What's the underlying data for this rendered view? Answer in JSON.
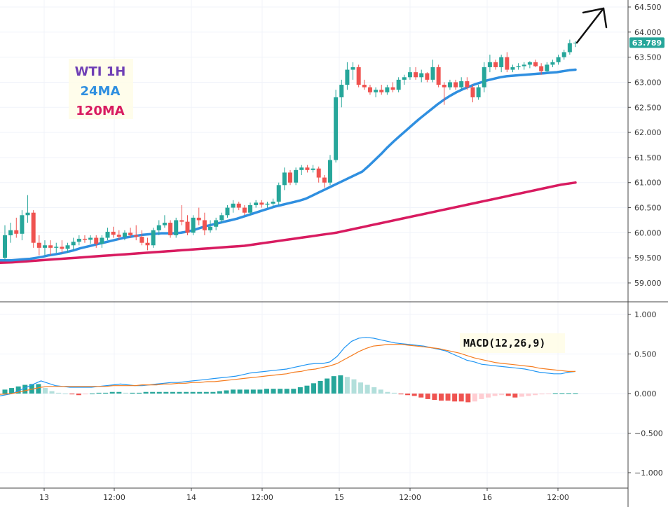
{
  "legend": {
    "line1": "WTI 1H",
    "line2": "24MA",
    "line3": "120MA"
  },
  "colors": {
    "up": "#26a69a",
    "down": "#ef5350",
    "ma24": "#2f8fe0",
    "ma120": "#d81b60",
    "legend1": "#6f3fb5",
    "macd": "#2196f3",
    "signal": "#f57c1f",
    "hist_up_strong": "#26a69a",
    "hist_up_weak": "#b2dfdb",
    "hist_down_strong": "#ef5350",
    "hist_down_weak": "#ffcdd2",
    "price_tag": "#26a69a"
  },
  "macd_label": "MACD(12,26,9)",
  "last_price_label": "63.789",
  "chart_data": [
    {
      "type": "candlestick",
      "title": "WTI 1H",
      "y_ticks": [
        "64.500",
        "64.000",
        "63.500",
        "63.000",
        "62.500",
        "62.000",
        "61.500",
        "61.000",
        "60.500",
        "60.000",
        "59.500",
        "59.000"
      ],
      "y_tick_values": [
        64.5,
        64.0,
        63.5,
        63.0,
        62.5,
        62.0,
        61.5,
        61.0,
        60.5,
        60.0,
        59.5,
        59.0
      ],
      "ylim": [
        58.55,
        64.65
      ],
      "x_ticks": [
        "13",
        "12:00",
        "14",
        "12:00",
        "15",
        "12:00",
        "16",
        "12:00"
      ],
      "last_price": 63.789,
      "candles": [
        {
          "o": 59.5,
          "h": 60.15,
          "l": 59.45,
          "c": 59.95
        },
        {
          "o": 59.95,
          "h": 60.2,
          "l": 59.8,
          "c": 60.05
        },
        {
          "o": 60.05,
          "h": 60.3,
          "l": 59.9,
          "c": 59.98
        },
        {
          "o": 59.98,
          "h": 60.45,
          "l": 59.85,
          "c": 60.35
        },
        {
          "o": 60.35,
          "h": 60.75,
          "l": 60.2,
          "c": 60.4
        },
        {
          "o": 60.4,
          "h": 60.45,
          "l": 59.7,
          "c": 59.8
        },
        {
          "o": 59.8,
          "h": 59.95,
          "l": 59.55,
          "c": 59.7
        },
        {
          "o": 59.7,
          "h": 59.85,
          "l": 59.55,
          "c": 59.75
        },
        {
          "o": 59.75,
          "h": 59.85,
          "l": 59.55,
          "c": 59.7
        },
        {
          "o": 59.7,
          "h": 59.8,
          "l": 59.6,
          "c": 59.72
        },
        {
          "o": 59.72,
          "h": 59.85,
          "l": 59.6,
          "c": 59.68
        },
        {
          "o": 59.68,
          "h": 59.8,
          "l": 59.6,
          "c": 59.75
        },
        {
          "o": 59.75,
          "h": 59.9,
          "l": 59.65,
          "c": 59.82
        },
        {
          "o": 59.82,
          "h": 59.95,
          "l": 59.75,
          "c": 59.88
        },
        {
          "o": 59.88,
          "h": 59.95,
          "l": 59.8,
          "c": 59.86
        },
        {
          "o": 59.86,
          "h": 59.95,
          "l": 59.78,
          "c": 59.9
        },
        {
          "o": 59.9,
          "h": 59.95,
          "l": 59.7,
          "c": 59.78
        },
        {
          "o": 59.78,
          "h": 59.95,
          "l": 59.7,
          "c": 59.9
        },
        {
          "o": 59.9,
          "h": 60.1,
          "l": 59.85,
          "c": 60.02
        },
        {
          "o": 60.02,
          "h": 60.12,
          "l": 59.9,
          "c": 59.96
        },
        {
          "o": 59.96,
          "h": 60.05,
          "l": 59.85,
          "c": 59.92
        },
        {
          "o": 59.92,
          "h": 60.05,
          "l": 59.85,
          "c": 60.0
        },
        {
          "o": 60.0,
          "h": 60.1,
          "l": 59.9,
          "c": 59.95
        },
        {
          "o": 59.95,
          "h": 60.15,
          "l": 59.85,
          "c": 59.92
        },
        {
          "o": 59.92,
          "h": 60.05,
          "l": 59.75,
          "c": 59.8
        },
        {
          "o": 59.8,
          "h": 59.9,
          "l": 59.65,
          "c": 59.75
        },
        {
          "o": 59.75,
          "h": 60.1,
          "l": 59.7,
          "c": 60.05
        },
        {
          "o": 60.05,
          "h": 60.25,
          "l": 59.95,
          "c": 60.15
        },
        {
          "o": 60.15,
          "h": 60.35,
          "l": 60.1,
          "c": 60.2
        },
        {
          "o": 60.2,
          "h": 60.25,
          "l": 59.9,
          "c": 59.95
        },
        {
          "o": 59.95,
          "h": 60.3,
          "l": 59.9,
          "c": 60.25
        },
        {
          "o": 60.25,
          "h": 60.55,
          "l": 60.15,
          "c": 60.22
        },
        {
          "o": 60.22,
          "h": 60.35,
          "l": 59.95,
          "c": 60.0
        },
        {
          "o": 60.0,
          "h": 60.35,
          "l": 59.95,
          "c": 60.3
        },
        {
          "o": 60.3,
          "h": 60.5,
          "l": 60.15,
          "c": 60.25
        },
        {
          "o": 60.25,
          "h": 60.4,
          "l": 59.95,
          "c": 60.05
        },
        {
          "o": 60.05,
          "h": 60.25,
          "l": 60.0,
          "c": 60.12
        },
        {
          "o": 60.12,
          "h": 60.3,
          "l": 60.05,
          "c": 60.25
        },
        {
          "o": 60.25,
          "h": 60.4,
          "l": 60.2,
          "c": 60.35
        },
        {
          "o": 60.35,
          "h": 60.55,
          "l": 60.3,
          "c": 60.5
        },
        {
          "o": 60.5,
          "h": 60.65,
          "l": 60.4,
          "c": 60.58
        },
        {
          "o": 60.58,
          "h": 60.62,
          "l": 60.45,
          "c": 60.5
        },
        {
          "o": 60.5,
          "h": 60.55,
          "l": 60.35,
          "c": 60.4
        },
        {
          "o": 60.4,
          "h": 60.6,
          "l": 60.35,
          "c": 60.55
        },
        {
          "o": 60.55,
          "h": 60.65,
          "l": 60.5,
          "c": 60.6
        },
        {
          "o": 60.6,
          "h": 60.65,
          "l": 60.5,
          "c": 60.56
        },
        {
          "o": 60.56,
          "h": 60.62,
          "l": 60.5,
          "c": 60.58
        },
        {
          "o": 60.58,
          "h": 60.68,
          "l": 60.52,
          "c": 60.62
        },
        {
          "o": 60.62,
          "h": 61.0,
          "l": 60.55,
          "c": 60.95
        },
        {
          "o": 60.95,
          "h": 61.3,
          "l": 60.85,
          "c": 61.2
        },
        {
          "o": 61.2,
          "h": 61.25,
          "l": 60.95,
          "c": 61.0
        },
        {
          "o": 61.0,
          "h": 61.3,
          "l": 60.95,
          "c": 61.25
        },
        {
          "o": 61.25,
          "h": 61.35,
          "l": 61.15,
          "c": 61.3
        },
        {
          "o": 61.3,
          "h": 61.35,
          "l": 61.2,
          "c": 61.25
        },
        {
          "o": 61.25,
          "h": 61.35,
          "l": 61.2,
          "c": 61.28
        },
        {
          "o": 61.28,
          "h": 61.32,
          "l": 61.0,
          "c": 61.1
        },
        {
          "o": 61.1,
          "h": 61.15,
          "l": 60.9,
          "c": 61.0
        },
        {
          "o": 61.0,
          "h": 61.55,
          "l": 60.95,
          "c": 61.45
        },
        {
          "o": 61.45,
          "h": 62.85,
          "l": 61.4,
          "c": 62.7
        },
        {
          "o": 62.7,
          "h": 63.05,
          "l": 62.5,
          "c": 62.95
        },
        {
          "o": 62.95,
          "h": 63.4,
          "l": 62.85,
          "c": 63.25
        },
        {
          "o": 63.25,
          "h": 63.4,
          "l": 63.05,
          "c": 63.3
        },
        {
          "o": 63.3,
          "h": 63.35,
          "l": 62.9,
          "c": 62.95
        },
        {
          "o": 62.95,
          "h": 63.05,
          "l": 62.85,
          "c": 62.9
        },
        {
          "o": 62.9,
          "h": 62.95,
          "l": 62.75,
          "c": 62.8
        },
        {
          "o": 62.8,
          "h": 62.9,
          "l": 62.7,
          "c": 62.85
        },
        {
          "o": 62.85,
          "h": 62.95,
          "l": 62.75,
          "c": 62.8
        },
        {
          "o": 62.8,
          "h": 62.95,
          "l": 62.75,
          "c": 62.9
        },
        {
          "o": 62.9,
          "h": 63.0,
          "l": 62.8,
          "c": 62.85
        },
        {
          "o": 62.85,
          "h": 63.1,
          "l": 62.8,
          "c": 63.05
        },
        {
          "o": 63.05,
          "h": 63.15,
          "l": 62.95,
          "c": 63.1
        },
        {
          "o": 63.1,
          "h": 63.3,
          "l": 63.05,
          "c": 63.2
        },
        {
          "o": 63.2,
          "h": 63.3,
          "l": 63.05,
          "c": 63.1
        },
        {
          "o": 63.1,
          "h": 63.25,
          "l": 63.0,
          "c": 63.18
        },
        {
          "o": 63.18,
          "h": 63.2,
          "l": 63.0,
          "c": 63.05
        },
        {
          "o": 63.05,
          "h": 63.45,
          "l": 63.0,
          "c": 63.3
        },
        {
          "o": 63.3,
          "h": 63.35,
          "l": 62.9,
          "c": 62.95
        },
        {
          "o": 62.95,
          "h": 63.0,
          "l": 62.55,
          "c": 62.9
        },
        {
          "o": 62.9,
          "h": 63.05,
          "l": 62.85,
          "c": 63.0
        },
        {
          "o": 63.0,
          "h": 63.05,
          "l": 62.85,
          "c": 62.9
        },
        {
          "o": 62.9,
          "h": 63.1,
          "l": 62.85,
          "c": 63.02
        },
        {
          "o": 63.02,
          "h": 63.1,
          "l": 62.85,
          "c": 62.9
        },
        {
          "o": 62.9,
          "h": 62.95,
          "l": 62.6,
          "c": 62.7
        },
        {
          "o": 62.7,
          "h": 62.95,
          "l": 62.65,
          "c": 62.9
        },
        {
          "o": 62.9,
          "h": 63.4,
          "l": 62.8,
          "c": 63.3
        },
        {
          "o": 63.3,
          "h": 63.55,
          "l": 63.2,
          "c": 63.4
        },
        {
          "o": 63.4,
          "h": 63.45,
          "l": 63.25,
          "c": 63.3
        },
        {
          "o": 63.3,
          "h": 63.55,
          "l": 63.2,
          "c": 63.5
        },
        {
          "o": 63.5,
          "h": 63.6,
          "l": 63.2,
          "c": 63.25
        },
        {
          "o": 63.25,
          "h": 63.35,
          "l": 63.2,
          "c": 63.3
        },
        {
          "o": 63.3,
          "h": 63.38,
          "l": 63.25,
          "c": 63.32
        },
        {
          "o": 63.32,
          "h": 63.4,
          "l": 63.25,
          "c": 63.35
        },
        {
          "o": 63.35,
          "h": 63.42,
          "l": 63.28,
          "c": 63.4
        },
        {
          "o": 63.4,
          "h": 63.45,
          "l": 63.3,
          "c": 63.32
        },
        {
          "o": 63.32,
          "h": 63.38,
          "l": 63.15,
          "c": 63.22
        },
        {
          "o": 63.22,
          "h": 63.4,
          "l": 63.2,
          "c": 63.35
        },
        {
          "o": 63.35,
          "h": 63.45,
          "l": 63.3,
          "c": 63.4
        },
        {
          "o": 63.4,
          "h": 63.55,
          "l": 63.35,
          "c": 63.5
        },
        {
          "o": 63.5,
          "h": 63.65,
          "l": 63.45,
          "c": 63.6
        },
        {
          "o": 63.6,
          "h": 63.85,
          "l": 63.55,
          "c": 63.78
        },
        {
          "o": 63.78,
          "h": 63.82,
          "l": 63.7,
          "c": 63.789
        }
      ],
      "ma24": [
        59.45,
        59.45,
        59.46,
        59.47,
        59.48,
        59.5,
        59.52,
        59.55,
        59.57,
        59.59,
        59.62,
        59.65,
        59.69,
        59.72,
        59.75,
        59.78,
        59.81,
        59.84,
        59.87,
        59.9,
        59.92,
        59.94,
        59.96,
        59.97,
        59.98,
        59.99,
        59.99,
        59.99,
        60.0,
        60.02,
        60.05,
        60.09,
        60.13,
        60.16,
        60.19,
        60.22,
        60.25,
        60.28,
        60.32,
        60.36,
        60.4,
        60.44,
        60.48,
        60.52,
        60.55,
        60.58,
        60.61,
        60.64,
        60.68,
        60.74,
        60.8,
        60.86,
        60.92,
        60.98,
        61.04,
        61.1,
        61.16,
        61.22,
        61.33,
        61.45,
        61.57,
        61.7,
        61.82,
        61.93,
        62.04,
        62.15,
        62.26,
        62.36,
        62.46,
        62.56,
        62.65,
        62.73,
        62.8,
        62.86,
        62.91,
        62.96,
        63.0,
        63.04,
        63.07,
        63.1,
        63.12,
        63.13,
        63.14,
        63.15,
        63.16,
        63.17,
        63.18,
        63.19,
        63.2,
        63.22,
        63.24,
        63.25
      ],
      "ma120": [
        59.4,
        59.41,
        59.42,
        59.43,
        59.44,
        59.45,
        59.46,
        59.47,
        59.48,
        59.49,
        59.5,
        59.51,
        59.52,
        59.53,
        59.54,
        59.55,
        59.56,
        59.57,
        59.58,
        59.59,
        59.6,
        59.61,
        59.62,
        59.63,
        59.64,
        59.65,
        59.66,
        59.67,
        59.68,
        59.69,
        59.7,
        59.71,
        59.72,
        59.73,
        59.74,
        59.76,
        59.78,
        59.8,
        59.82,
        59.84,
        59.86,
        59.88,
        59.9,
        59.92,
        59.94,
        59.96,
        59.98,
        60.0,
        60.03,
        60.06,
        60.09,
        60.12,
        60.15,
        60.18,
        60.21,
        60.24,
        60.27,
        60.3,
        60.33,
        60.36,
        60.39,
        60.42,
        60.45,
        60.48,
        60.51,
        60.54,
        60.57,
        60.6,
        60.63,
        60.66,
        60.69,
        60.72,
        60.75,
        60.78,
        60.81,
        60.84,
        60.87,
        60.9,
        60.93,
        60.96,
        60.98,
        61.0
      ]
    },
    {
      "type": "line",
      "title": "MACD(12,26,9)",
      "y_ticks": [
        "1.000",
        "0.500",
        "0.000",
        "−0.500",
        "−1.000"
      ],
      "y_tick_values": [
        1.0,
        0.5,
        0.0,
        -0.5,
        -1.0
      ],
      "ylim": [
        -1.2,
        1.1
      ],
      "series": [
        {
          "values": [
            -0.03,
            0.0,
            0.04,
            0.08,
            0.12,
            0.16,
            0.13,
            0.1,
            0.09,
            0.08,
            0.08,
            0.08,
            0.08,
            0.09,
            0.1,
            0.11,
            0.12,
            0.11,
            0.1,
            0.1,
            0.11,
            0.12,
            0.13,
            0.14,
            0.14,
            0.15,
            0.16,
            0.17,
            0.18,
            0.19,
            0.2,
            0.21,
            0.22,
            0.24,
            0.26,
            0.27,
            0.28,
            0.29,
            0.3,
            0.31,
            0.33,
            0.35,
            0.37,
            0.38,
            0.38,
            0.4,
            0.47,
            0.58,
            0.66,
            0.7,
            0.71,
            0.7,
            0.68,
            0.66,
            0.64,
            0.63,
            0.62,
            0.61,
            0.6,
            0.58,
            0.56,
            0.54,
            0.5,
            0.46,
            0.42,
            0.4,
            0.37,
            0.36,
            0.35,
            0.34,
            0.33,
            0.32,
            0.31,
            0.29,
            0.27,
            0.26,
            0.25,
            0.25,
            0.27,
            0.28
          ]
        },
        {
          "values": [
            -0.01,
            0.0,
            0.02,
            0.04,
            0.06,
            0.08,
            0.09,
            0.09,
            0.09,
            0.09,
            0.09,
            0.09,
            0.09,
            0.09,
            0.09,
            0.1,
            0.1,
            0.1,
            0.1,
            0.11,
            0.11,
            0.11,
            0.12,
            0.12,
            0.13,
            0.13,
            0.14,
            0.14,
            0.15,
            0.15,
            0.16,
            0.17,
            0.18,
            0.19,
            0.2,
            0.21,
            0.22,
            0.23,
            0.24,
            0.25,
            0.27,
            0.28,
            0.3,
            0.31,
            0.33,
            0.35,
            0.38,
            0.43,
            0.48,
            0.53,
            0.57,
            0.6,
            0.61,
            0.62,
            0.62,
            0.62,
            0.61,
            0.6,
            0.59,
            0.58,
            0.57,
            0.55,
            0.53,
            0.51,
            0.48,
            0.45,
            0.43,
            0.41,
            0.39,
            0.38,
            0.37,
            0.36,
            0.35,
            0.34,
            0.32,
            0.31,
            0.3,
            0.29,
            0.28,
            0.28
          ]
        }
      ],
      "histogram": [
        0.05,
        0.07,
        0.09,
        0.11,
        0.12,
        0.12,
        0.07,
        0.03,
        0.01,
        0.0,
        -0.01,
        -0.02,
        -0.01,
        0.0,
        0.01,
        0.01,
        0.02,
        0.02,
        0.01,
        0.01,
        0.01,
        0.02,
        0.02,
        0.02,
        0.02,
        0.02,
        0.02,
        0.02,
        0.02,
        0.02,
        0.02,
        0.02,
        0.03,
        0.04,
        0.05,
        0.05,
        0.05,
        0.05,
        0.05,
        0.06,
        0.06,
        0.06,
        0.06,
        0.06,
        0.08,
        0.1,
        0.13,
        0.16,
        0.19,
        0.22,
        0.23,
        0.21,
        0.18,
        0.14,
        0.11,
        0.08,
        0.05,
        0.02,
        0.01,
        -0.01,
        -0.02,
        -0.03,
        -0.05,
        -0.07,
        -0.08,
        -0.09,
        -0.09,
        -0.1,
        -0.1,
        -0.11,
        -0.1,
        -0.07,
        -0.05,
        -0.03,
        -0.02,
        -0.03,
        -0.05,
        -0.04,
        -0.03,
        -0.02,
        -0.01,
        -0.005,
        0.005,
        0.005,
        0.005,
        0.005
      ]
    }
  ]
}
